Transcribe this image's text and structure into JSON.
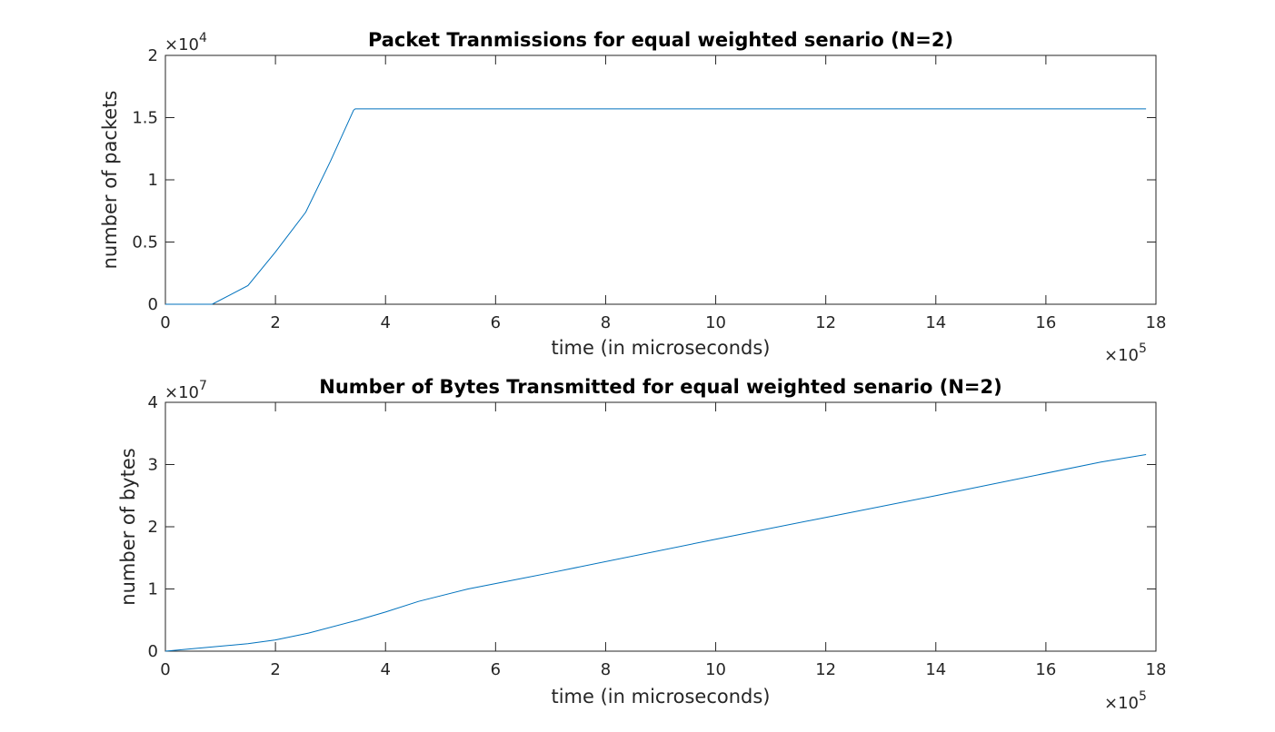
{
  "chart_data": [
    {
      "type": "line",
      "title": "Packet Tranmissions for equal weighted senario (N=2)",
      "xlabel": "time (in microseconds)",
      "ylabel": "number of packets",
      "x_multiplier": "×10",
      "x_multiplier_exp": "5",
      "y_multiplier": "×10",
      "y_multiplier_exp": "4",
      "xlim": [
        0,
        1800000
      ],
      "ylim": [
        0,
        20000
      ],
      "xticks": [
        0,
        200000,
        400000,
        600000,
        800000,
        1000000,
        1200000,
        1400000,
        1600000,
        1800000
      ],
      "xtick_labels": [
        "0",
        "2",
        "4",
        "6",
        "8",
        "10",
        "12",
        "14",
        "16",
        "18"
      ],
      "yticks": [
        0,
        5000,
        10000,
        15000,
        20000
      ],
      "ytick_labels": [
        "0",
        "0.5",
        "1",
        "1.5",
        "2"
      ],
      "grid": false,
      "color": "#0072BD",
      "series": [
        {
          "x": [
            0,
            85000,
            150000,
            200000,
            255000,
            300000,
            342000,
            345000,
            1782000
          ],
          "y": [
            0,
            0,
            1500,
            4200,
            7400,
            11500,
            15600,
            15700,
            15700
          ]
        }
      ]
    },
    {
      "type": "line",
      "title": "Number of Bytes Transmitted for equal weighted senario (N=2)",
      "xlabel": "time (in microseconds)",
      "ylabel": "number of bytes",
      "x_multiplier": "×10",
      "x_multiplier_exp": "5",
      "y_multiplier": "×10",
      "y_multiplier_exp": "7",
      "xlim": [
        0,
        1800000
      ],
      "ylim": [
        0,
        40000000
      ],
      "xticks": [
        0,
        200000,
        400000,
        600000,
        800000,
        1000000,
        1200000,
        1400000,
        1600000,
        1800000
      ],
      "xtick_labels": [
        "0",
        "2",
        "4",
        "6",
        "8",
        "10",
        "12",
        "14",
        "16",
        "18"
      ],
      "yticks": [
        0,
        10000000,
        20000000,
        30000000,
        40000000
      ],
      "ytick_labels": [
        "0",
        "1",
        "2",
        "3",
        "4"
      ],
      "grid": false,
      "color": "#0072BD",
      "series": [
        {
          "x": [
            0,
            150000,
            200000,
            260000,
            350000,
            400000,
            460000,
            550000,
            700000,
            1000000,
            1200000,
            1400000,
            1700000,
            1782000
          ],
          "y": [
            0,
            1200000,
            1800000,
            2900000,
            5000000,
            6300000,
            8000000,
            10000000,
            12600000,
            18000000,
            21500000,
            25000000,
            30400000,
            31600000
          ]
        }
      ]
    }
  ]
}
